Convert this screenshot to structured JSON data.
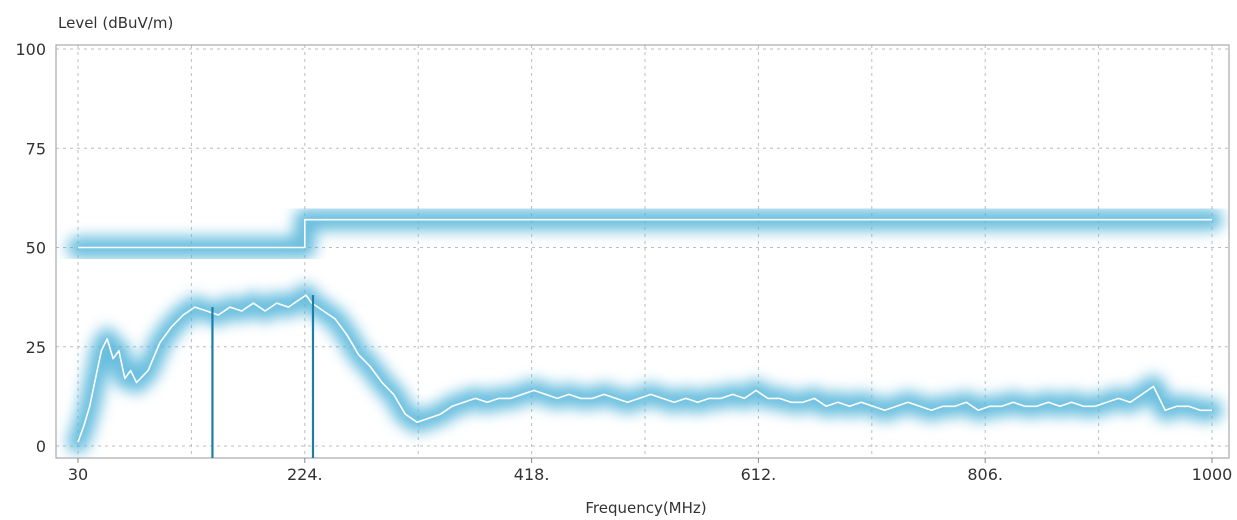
{
  "chart_data": {
    "type": "line",
    "ylabel": "Level (dBuV/m)",
    "xlabel": "Frequency(MHz)",
    "xlim": [
      30,
      1000
    ],
    "ylim": [
      0,
      100
    ],
    "x_ticks": [
      30,
      224,
      418,
      612,
      806,
      1000
    ],
    "x_tick_labels": [
      "30",
      "224.",
      "418.",
      "612.",
      "806.",
      "1000"
    ],
    "y_ticks": [
      0,
      25,
      50,
      75,
      100
    ],
    "y_tick_labels": [
      "0",
      "25",
      "50",
      "75",
      "100"
    ],
    "grid": true,
    "series": [
      {
        "role": "limit",
        "x": [
          30,
          224,
          224,
          1000
        ],
        "y": [
          50,
          50,
          57,
          57
        ],
        "color": "#ffffff"
      },
      {
        "role": "measurement",
        "x": [
          30,
          35,
          40,
          45,
          50,
          55,
          60,
          65,
          70,
          75,
          80,
          90,
          100,
          110,
          120,
          130,
          140,
          150,
          160,
          170,
          180,
          190,
          200,
          210,
          220,
          225,
          230,
          240,
          250,
          260,
          270,
          280,
          290,
          300,
          310,
          320,
          330,
          340,
          350,
          360,
          370,
          380,
          390,
          400,
          410,
          420,
          430,
          440,
          450,
          460,
          470,
          480,
          490,
          500,
          510,
          520,
          530,
          540,
          550,
          560,
          570,
          580,
          590,
          600,
          610,
          620,
          630,
          640,
          650,
          660,
          670,
          680,
          690,
          700,
          710,
          720,
          730,
          740,
          750,
          760,
          770,
          780,
          790,
          800,
          810,
          820,
          830,
          840,
          850,
          860,
          870,
          880,
          890,
          900,
          910,
          920,
          930,
          940,
          950,
          960,
          970,
          980,
          990,
          1000
        ],
        "y": [
          1,
          5,
          10,
          17,
          24,
          27,
          22,
          24,
          17,
          19,
          16,
          19,
          26,
          30,
          33,
          35,
          34,
          33,
          35,
          34,
          36,
          34,
          36,
          35,
          37,
          38,
          36,
          34,
          32,
          28,
          23,
          20,
          16,
          13,
          8,
          6,
          7,
          8,
          10,
          11,
          12,
          11,
          12,
          12,
          13,
          14,
          13,
          12,
          13,
          12,
          12,
          13,
          12,
          11,
          12,
          13,
          12,
          11,
          12,
          11,
          12,
          12,
          13,
          12,
          14,
          12,
          12,
          11,
          11,
          12,
          10,
          11,
          10,
          11,
          10,
          9,
          10,
          11,
          10,
          9,
          10,
          10,
          11,
          9,
          10,
          10,
          11,
          10,
          10,
          11,
          10,
          11,
          10,
          10,
          11,
          12,
          11,
          13,
          15,
          9,
          10,
          10,
          9,
          9
        ],
        "color": "#ffffff"
      },
      {
        "role": "peaks",
        "type": "stem",
        "x": [
          145,
          231
        ],
        "y": [
          35,
          38
        ],
        "color": "#1b7fa8"
      }
    ]
  }
}
